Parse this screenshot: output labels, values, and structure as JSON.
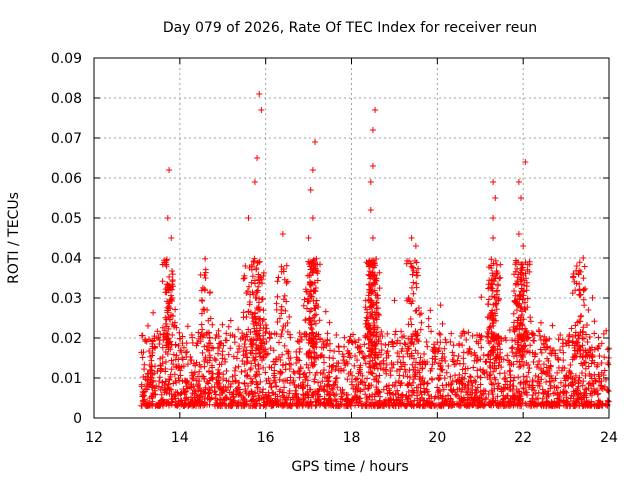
{
  "chart_data": {
    "type": "scatter",
    "title": "Day 079 of 2026, Rate Of TEC Index for receiver reun",
    "xlabel": "GPS time / hours",
    "ylabel": "ROTI / TECUs",
    "xlim": [
      12,
      24
    ],
    "ylim": [
      0,
      0.09
    ],
    "xticks": [
      12,
      14,
      16,
      18,
      20,
      22,
      24
    ],
    "xtick_labels": [
      "12",
      "14",
      "16",
      "18",
      "20",
      "22",
      "24"
    ],
    "yticks": [
      0,
      0.01,
      0.02,
      0.03,
      0.04,
      0.05,
      0.06,
      0.07,
      0.08,
      0.09
    ],
    "ytick_labels": [
      "0",
      "0.01",
      "0.02",
      "0.03",
      "0.04",
      "0.05",
      "0.06",
      "0.07",
      "0.08",
      "0.09"
    ],
    "grid": true,
    "marker": "+",
    "marker_color": "#ff0000",
    "series": [
      {
        "name": "ROTI",
        "x_start": 13.1,
        "x_end": 24.0,
        "typical_range": [
          0.003,
          0.02
        ],
        "peaks": [
          {
            "x": 13.75,
            "y": 0.062
          },
          {
            "x": 13.72,
            "y": 0.05
          },
          {
            "x": 13.8,
            "y": 0.045
          },
          {
            "x": 14.6,
            "y": 0.035
          },
          {
            "x": 15.85,
            "y": 0.081
          },
          {
            "x": 15.9,
            "y": 0.077
          },
          {
            "x": 15.8,
            "y": 0.065
          },
          {
            "x": 15.75,
            "y": 0.059
          },
          {
            "x": 15.6,
            "y": 0.05
          },
          {
            "x": 16.4,
            "y": 0.046
          },
          {
            "x": 17.15,
            "y": 0.069
          },
          {
            "x": 17.1,
            "y": 0.062
          },
          {
            "x": 17.05,
            "y": 0.057
          },
          {
            "x": 17.1,
            "y": 0.05
          },
          {
            "x": 17.0,
            "y": 0.045
          },
          {
            "x": 18.55,
            "y": 0.077
          },
          {
            "x": 18.5,
            "y": 0.072
          },
          {
            "x": 18.5,
            "y": 0.063
          },
          {
            "x": 18.45,
            "y": 0.059
          },
          {
            "x": 18.45,
            "y": 0.052
          },
          {
            "x": 18.5,
            "y": 0.045
          },
          {
            "x": 19.4,
            "y": 0.045
          },
          {
            "x": 19.5,
            "y": 0.043
          },
          {
            "x": 21.3,
            "y": 0.059
          },
          {
            "x": 21.35,
            "y": 0.055
          },
          {
            "x": 21.3,
            "y": 0.05
          },
          {
            "x": 21.3,
            "y": 0.045
          },
          {
            "x": 21.9,
            "y": 0.059
          },
          {
            "x": 22.05,
            "y": 0.064
          },
          {
            "x": 21.95,
            "y": 0.055
          },
          {
            "x": 21.9,
            "y": 0.046
          },
          {
            "x": 22.0,
            "y": 0.043
          },
          {
            "x": 23.25,
            "y": 0.038
          },
          {
            "x": 23.4,
            "y": 0.04
          }
        ]
      }
    ]
  }
}
